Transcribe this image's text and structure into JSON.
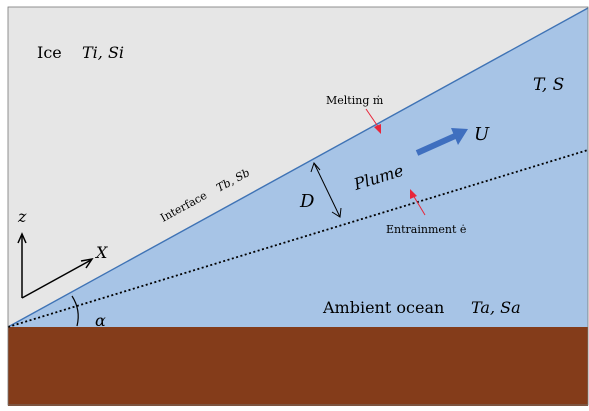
{
  "colors": {
    "ice": "#e6e6e6",
    "ocean": "#a7c4e6",
    "seabed": "#843c1a",
    "interface": "#3f73b5",
    "flow_arrow": "#3f6fbf",
    "melt_arrow": "#e8263a",
    "frame": "#777777",
    "ink": "#000000"
  },
  "labels": {
    "ice": "Ice",
    "ice_props": "Ti, Si",
    "ambient_props": "T, S",
    "melting": "Melting ṁ",
    "velocity": "U",
    "plume": "Plume",
    "interface": "Interface",
    "interface_props": "Tb, Sb",
    "thickness": "D",
    "entrainment": "Entrainment ė",
    "axis_z": "z",
    "axis_x": "X",
    "ambient_ocean": "Ambient ocean",
    "ocean_props": "Ta, Sa",
    "slope_angle": "α"
  }
}
